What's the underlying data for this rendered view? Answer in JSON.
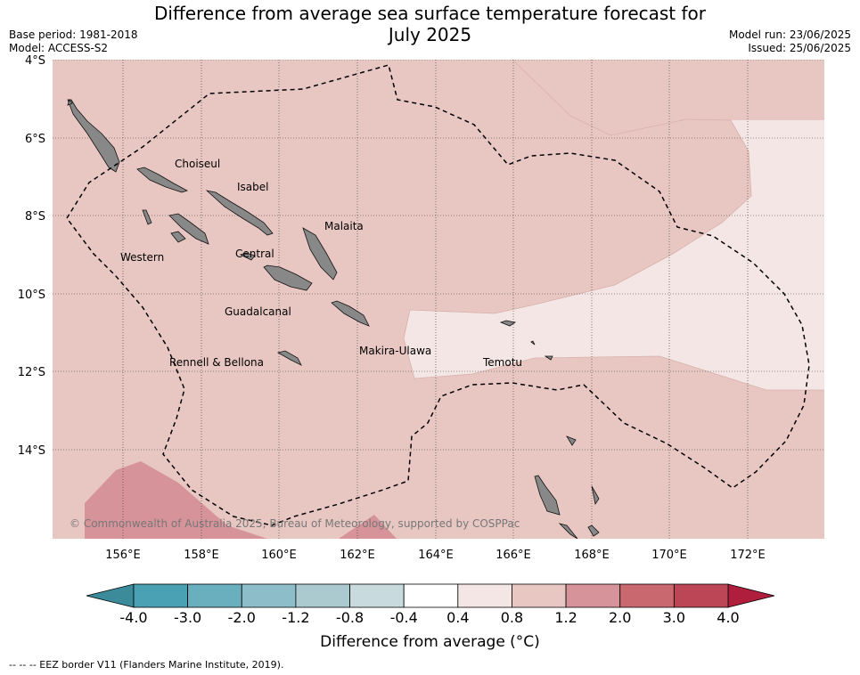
{
  "title_line1": "Difference from average sea surface temperature forecast for",
  "title_line2": "July 2025",
  "base_period": "Base period: 1981-2018",
  "model": "Model: ACCESS-S2",
  "model_run": "Model run: 23/06/2025",
  "issued": "Issued: 25/06/2025",
  "lat_labels": [
    "4°S",
    "6°S",
    "8°S",
    "10°S",
    "12°S",
    "14°S"
  ],
  "lon_labels": [
    "156°E",
    "158°E",
    "160°E",
    "162°E",
    "164°E",
    "166°E",
    "168°E",
    "170°E",
    "172°E"
  ],
  "places": [
    "Choiseul",
    "Isabel",
    "Malaita",
    "Western",
    "Central",
    "Guadalcanal",
    "Makira-Ulawa",
    "Rennell & Bellona",
    "Temotu"
  ],
  "credit": "© Commonwealth of Australia 2025, Bureau of Meteorology, supported by COSPPac",
  "colorbar": {
    "ticks": [
      "-4.0",
      "-3.0",
      "-2.0",
      "-1.2",
      "-0.8",
      "-0.4",
      "0.4",
      "0.8",
      "1.2",
      "2.0",
      "3.0",
      "4.0"
    ],
    "colors": [
      "#49a1b3",
      "#6aafbe",
      "#8cbdc8",
      "#aacad0",
      "#c9dadf",
      "#ffffff",
      "#f4e6e4",
      "#e8c7c3",
      "#d6939a",
      "#c9686f",
      "#bd4656"
    ],
    "low_color": "#3b8b9b",
    "high_color": "#b01e3d",
    "title": "Difference from average (°C)"
  },
  "footnote": "--  --  -- EEZ border V11 (Flanders Marine Institute, 2019)."
}
